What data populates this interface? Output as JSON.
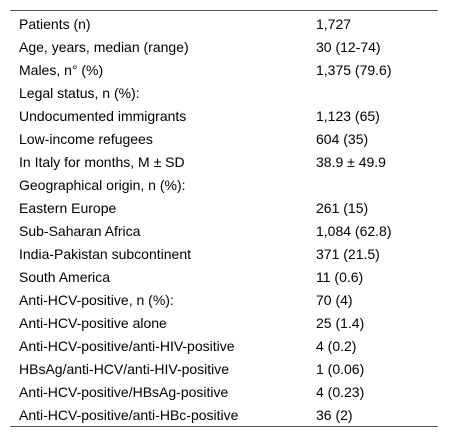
{
  "table": {
    "rows": [
      {
        "label": "Patients (n)",
        "value": "1,727"
      },
      {
        "label": "Age, years, median (range)",
        "value": "30 (12-74)"
      },
      {
        "label": "Males, n° (%)",
        "value": "1,375 (79.6)"
      },
      {
        "label": "Legal status, n (%):",
        "value": ""
      },
      {
        "label": "Undocumented immigrants",
        "value": "1,123 (65)"
      },
      {
        "label": "Low-income refugees",
        "value": "604 (35)"
      },
      {
        "label": "In Italy for months, M ± SD",
        "value": "38.9 ± 49.9"
      },
      {
        "label": "Geographical origin, n (%):",
        "value": ""
      },
      {
        "label": "Eastern Europe",
        "value": "261 (15)"
      },
      {
        "label": "Sub-Saharan Africa",
        "value": "1,084 (62.8)"
      },
      {
        "label": "India-Pakistan subcontinent",
        "value": "371 (21.5)"
      },
      {
        "label": "South America",
        "value": "11 (0.6)"
      },
      {
        "label": "Anti-HCV-positive, n (%):",
        "value": "70 (4)"
      },
      {
        "label": "Anti-HCV-positive alone",
        "value": "25 (1.4)"
      },
      {
        "label": "Anti-HCV-positive/anti-HIV-positive",
        "value": "4 (0.2)"
      },
      {
        "label": "HBsAg/anti-HCV/anti-HIV-positive",
        "value": "1 (0.06)"
      },
      {
        "label": "Anti-HCV-positive/HBsAg-positive",
        "value": "4 (0.23)"
      },
      {
        "label": "Anti-HCV-positive/anti-HBc-positive",
        "value": "36 (2)"
      }
    ]
  }
}
